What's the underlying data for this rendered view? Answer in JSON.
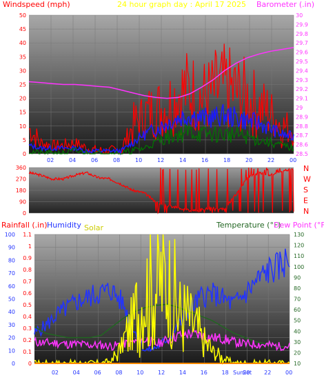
{
  "header": {
    "windspeed_label": "Windspeed (mph)",
    "title": "24 hour graph day : April 17 2025",
    "barometer_label": "Barometer (.in)"
  },
  "colors": {
    "windspeed": "#ff0000",
    "gust": "#ff0000",
    "wind_avg": "#1a1aff",
    "wind_min": "#007700",
    "barometer": "#ff33ff",
    "title": "#ffff00",
    "direction": "#ff0000",
    "rainfall": "#ff0000",
    "humidity": "#2233ff",
    "solar": "#ffff00",
    "temperature": "#226622",
    "dewpoint": "#ff33ff"
  },
  "chart_data": [
    {
      "type": "line",
      "name_key": "wind-barometer",
      "y_left_ticks": [
        0,
        5,
        10,
        15,
        20,
        25,
        30,
        35,
        40,
        45,
        50
      ],
      "ylim_left": [
        0,
        50
      ],
      "y_right_ticks": [
        "28.5",
        "28.6",
        "28.7",
        "28.8",
        "28.9",
        "29",
        "29.1",
        "29.2",
        "29.3",
        "29.4",
        "29.5",
        "29.6",
        "29.7",
        "29.8",
        "29.9",
        "30"
      ],
      "ylim_right": [
        28.5,
        30
      ],
      "x_ticks": [
        "02",
        "04",
        "06",
        "08",
        "10",
        "12",
        "14",
        "16",
        "18",
        "20",
        "22",
        "00"
      ],
      "series": [
        {
          "key": "gust",
          "values": [
            9,
            4,
            3,
            3,
            4,
            2,
            1,
            1,
            1,
            10,
            14,
            16,
            17,
            22,
            23,
            20,
            22,
            24,
            22,
            20,
            17,
            15,
            10,
            9
          ]
        },
        {
          "key": "avg",
          "values": [
            3,
            2,
            2,
            2,
            2,
            1,
            1,
            1,
            1,
            4,
            7,
            9,
            11,
            13,
            14,
            13,
            13,
            14,
            13,
            12,
            11,
            9,
            7,
            6
          ]
        },
        {
          "key": "min",
          "values": [
            1,
            0,
            0,
            0,
            1,
            0,
            0,
            0,
            0,
            1,
            2,
            4,
            6,
            7,
            8,
            7,
            7,
            7,
            7,
            6,
            5,
            4,
            3,
            2
          ]
        },
        {
          "key": "barometer",
          "values": [
            29.28,
            29.27,
            29.26,
            29.25,
            29.25,
            29.24,
            29.23,
            29.22,
            29.19,
            29.16,
            29.13,
            29.11,
            29.1,
            29.11,
            29.15,
            29.22,
            29.3,
            29.4,
            29.48,
            29.54,
            29.58,
            29.61,
            29.63,
            29.65
          ]
        }
      ]
    },
    {
      "type": "scatter",
      "name_key": "wind-direction",
      "y_ticks": [
        "360",
        "270",
        "180",
        "90",
        "0"
      ],
      "ylim": [
        0,
        360
      ],
      "compass": [
        "N",
        "W",
        "S",
        "E",
        "N"
      ],
      "values": [
        320,
        300,
        270,
        270,
        300,
        320,
        280,
        270,
        230,
        180,
        160,
        90,
        60,
        40,
        20,
        30,
        40,
        30,
        150,
        280,
        320,
        300,
        330,
        350
      ]
    },
    {
      "type": "line",
      "name_key": "rain-humidity-temp",
      "header": {
        "rainfall_label": "Rainfall (.in)",
        "humidity_label": "Humidity",
        "solar_label": "Solar",
        "temperature_label": "Temperature (°F)",
        "dewpoint_label": "Dew Point (°F)"
      },
      "y_left_ticks": [
        "0",
        "10",
        "20",
        "30",
        "40",
        "50",
        "60",
        "70",
        "80",
        "90",
        "100"
      ],
      "y_rain_ticks": [
        "0",
        "0.1",
        "0.2",
        "0.3",
        "0.4",
        "0.5",
        "0.6",
        "0.7",
        "0.8",
        "0.9",
        "1",
        "1.1"
      ],
      "y_right_ticks": [
        "10",
        "20",
        "30",
        "40",
        "50",
        "60",
        "70",
        "80",
        "90",
        "100",
        "110",
        "120",
        "130"
      ],
      "ylim_left": [
        0,
        100
      ],
      "ylim_right": [
        10,
        130
      ],
      "x_ticks": [
        "02",
        "04",
        "06",
        "08",
        "10",
        "12",
        "14",
        "16",
        "18",
        "20",
        "22",
        "00"
      ],
      "sun_labels": [
        "Sun",
        "Set"
      ],
      "series": [
        {
          "key": "humidity",
          "values": [
            38,
            45,
            55,
            62,
            68,
            72,
            76,
            78,
            65,
            40,
            22,
            25,
            33,
            45,
            60,
            72,
            75,
            70,
            65,
            75,
            86,
            96,
            100,
            108
          ]
        },
        {
          "key": "temperature",
          "values": [
            44,
            38,
            36,
            34,
            34,
            34,
            36,
            44,
            52,
            58,
            62,
            64,
            65,
            62,
            58,
            54,
            50,
            44,
            38,
            34,
            30,
            28,
            26,
            25
          ]
        },
        {
          "key": "dewpoint",
          "values": [
            30,
            29,
            29,
            28,
            28,
            27,
            27,
            26,
            28,
            30,
            32,
            28,
            32,
            36,
            38,
            36,
            34,
            33,
            30,
            28,
            28,
            27,
            26,
            26
          ]
        },
        {
          "key": "solar",
          "values": [
            0,
            0,
            0,
            0,
            0,
            0,
            0,
            2,
            15,
            35,
            55,
            62,
            68,
            40,
            35,
            20,
            10,
            4,
            0,
            0,
            0,
            0,
            0,
            0
          ]
        },
        {
          "key": "rainfall",
          "values": [
            0,
            0,
            0,
            0,
            0,
            0,
            0,
            0,
            0,
            0,
            0,
            0,
            0,
            0,
            0,
            0,
            0,
            0,
            0,
            0,
            0,
            0,
            0,
            0
          ]
        }
      ]
    }
  ]
}
